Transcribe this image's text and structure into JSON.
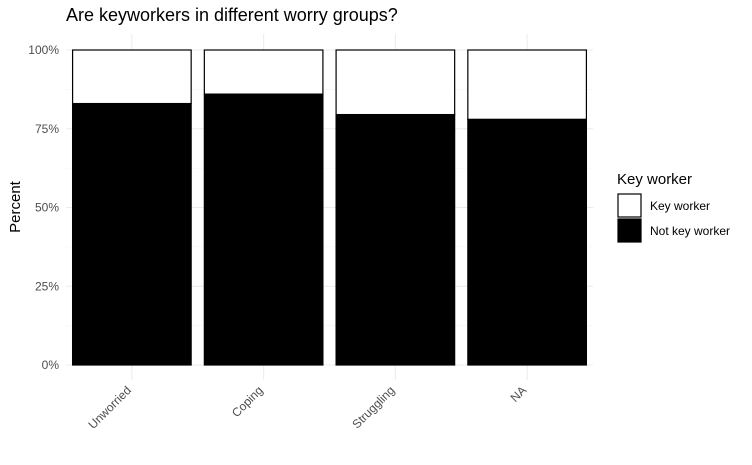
{
  "chart_data": {
    "type": "bar",
    "stacked": true,
    "normalized": true,
    "title": "Are keyworkers in different worry groups?",
    "xlabel": "",
    "ylabel": "Percent",
    "ylim": [
      0,
      1
    ],
    "y_ticks": [
      {
        "value": 0,
        "label": "0%"
      },
      {
        "value": 0.25,
        "label": "25%"
      },
      {
        "value": 0.5,
        "label": "50%"
      },
      {
        "value": 0.75,
        "label": "75%"
      },
      {
        "value": 1,
        "label": "100%"
      }
    ],
    "categories": [
      "Unworried",
      "Coping",
      "Struggling",
      "NA"
    ],
    "series": [
      {
        "name": "Not key worker",
        "color": "#000000",
        "values": [
          0.83,
          0.86,
          0.795,
          0.78
        ]
      },
      {
        "name": "Key worker",
        "color": "#ffffff",
        "values": [
          0.17,
          0.14,
          0.205,
          0.22
        ]
      }
    ],
    "grid": true,
    "legend": {
      "title": "Key worker",
      "position": "right",
      "entries": [
        {
          "label": "Key worker",
          "color": "#ffffff"
        },
        {
          "label": "Not key worker",
          "color": "#000000"
        }
      ]
    }
  }
}
